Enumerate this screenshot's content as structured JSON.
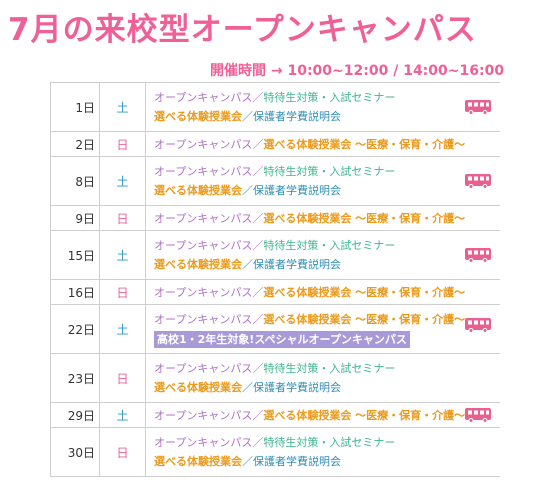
{
  "title": "7月の来校型オープンキャンパス",
  "hours": "開催時間 → 10:00~12:00 / 14:00~16:00",
  "colors": {
    "title": "#ef5f98",
    "saturday": "#2e9bc9",
    "sunday": "#ef5f98",
    "bus": "#e8608f"
  },
  "rows": [
    {
      "date": "1日",
      "dow": "土",
      "a": "オープンキャンパス",
      "b": "特待生対策・入試セミナー",
      "c": "選べる体験授業会",
      "d": "保護者学費説明会",
      "bus": "bus-icon"
    },
    {
      "date": "2日",
      "dow": "日",
      "a": "オープンキャンパス",
      "b": "選べる体験授業会 ～医療・保育・介護～"
    },
    {
      "date": "8日",
      "dow": "土",
      "a": "オープンキャンパス",
      "b": "特待生対策・入試セミナー",
      "c": "選べる体験授業会",
      "d": "保護者学費説明会",
      "bus": "bus-icon"
    },
    {
      "date": "9日",
      "dow": "日",
      "a": "オープンキャンパス",
      "b": "選べる体験授業会 ～医療・保育・介護～"
    },
    {
      "date": "15日",
      "dow": "土",
      "a": "オープンキャンパス",
      "b": "特待生対策・入試セミナー",
      "c": "選べる体験授業会",
      "d": "保護者学費説明会",
      "bus": "bus-icon"
    },
    {
      "date": "16日",
      "dow": "日",
      "a": "オープンキャンパス",
      "b": "選べる体験授業会 ～医療・保育・介護～"
    },
    {
      "date": "22日",
      "dow": "土",
      "a": "オープンキャンパス",
      "b": "選べる体験授業会 ～医療・保育・介護～",
      "banner": "高校1・2年生対象!スペシャルオープンキャンパス",
      "bus": "bus-icon"
    },
    {
      "date": "23日",
      "dow": "日",
      "a": "オープンキャンパス",
      "b": "特待生対策・入試セミナー",
      "c": "選べる体験授業会",
      "d": "保護者学費説明会"
    },
    {
      "date": "29日",
      "dow": "土",
      "a": "オープンキャンパス",
      "b": "選べる体験授業会 ～医療・保育・介護～",
      "bus": "bus-icon"
    },
    {
      "date": "30日",
      "dow": "日",
      "a": "オープンキャンパス",
      "b": "特待生対策・入試セミナー",
      "c": "選べる体験授業会",
      "d": "保護者学費説明会"
    }
  ]
}
